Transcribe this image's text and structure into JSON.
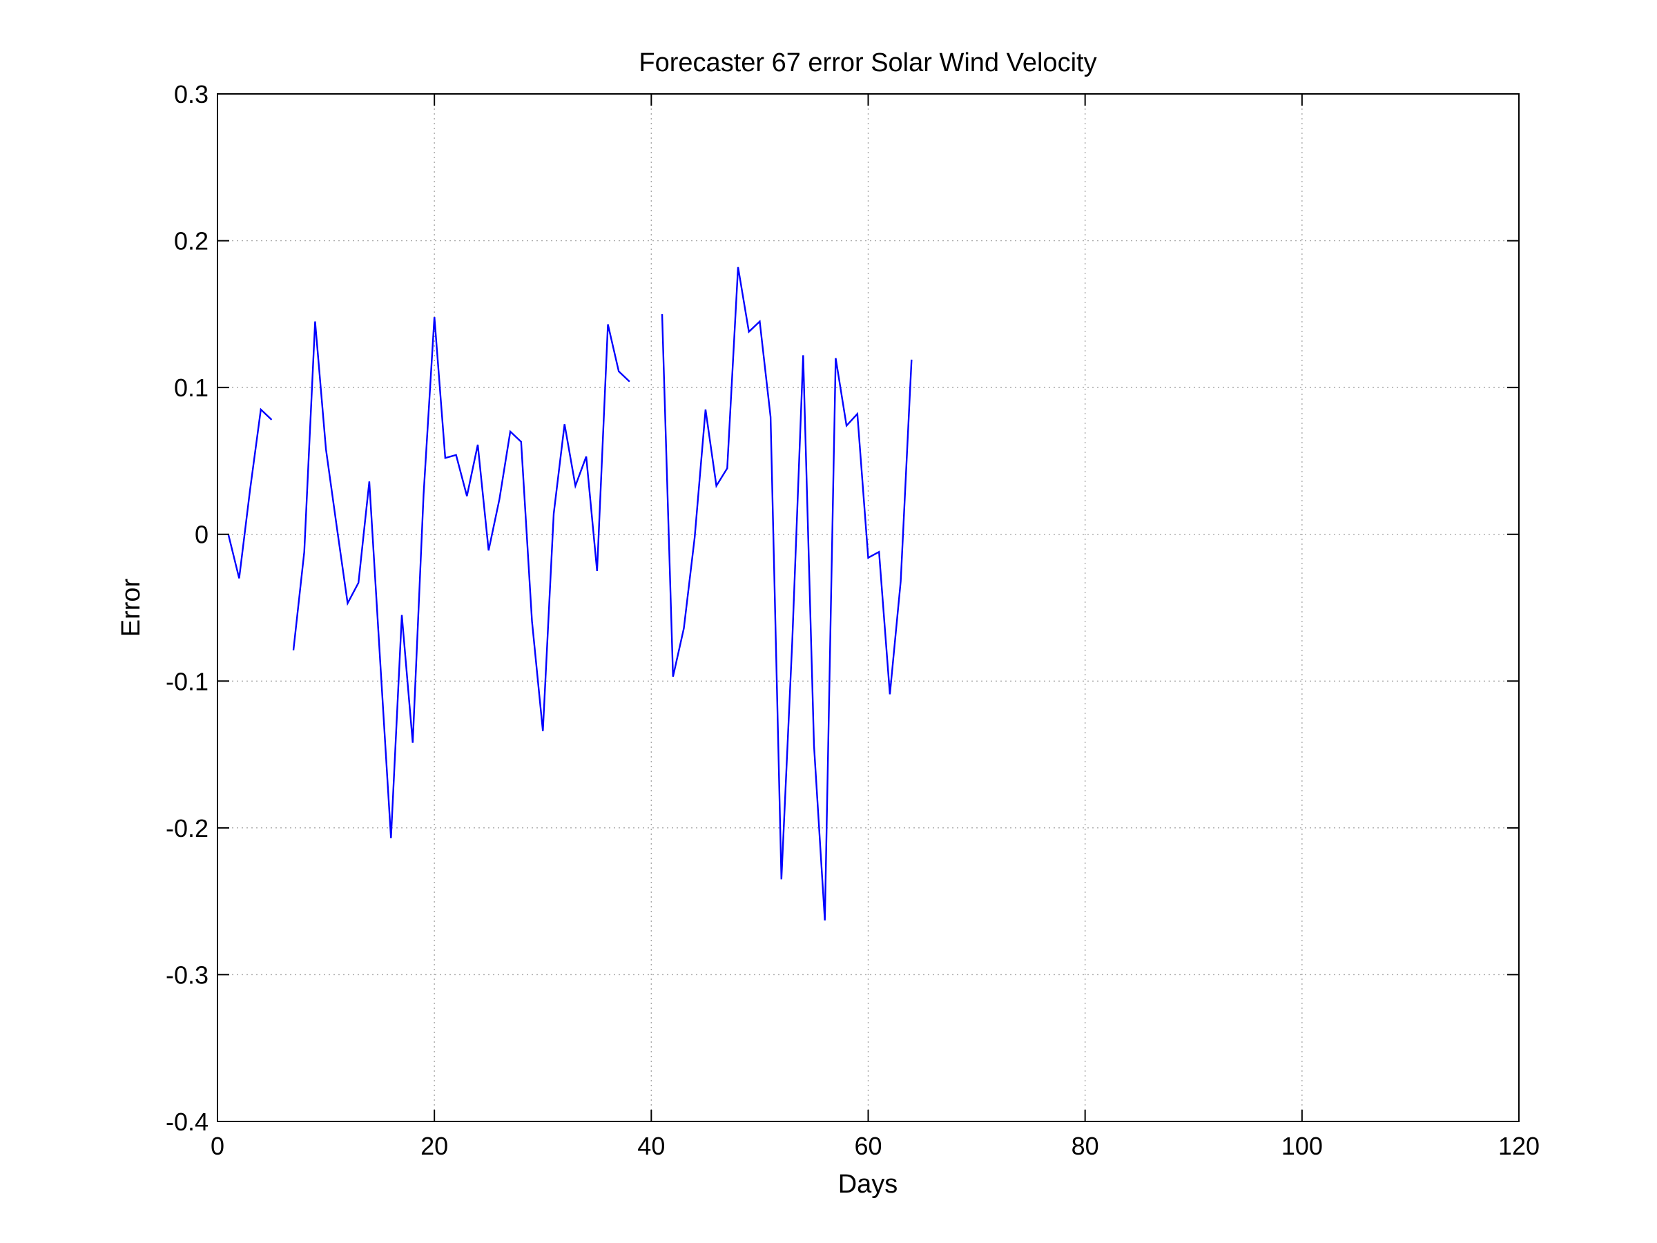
{
  "chart_data": {
    "type": "line",
    "title": "Forecaster 67 error  Solar Wind Velocity",
    "xlabel": "Days",
    "ylabel": "Error",
    "xlim": [
      0,
      120
    ],
    "ylim": [
      -0.4,
      0.3
    ],
    "xticks": [
      0,
      20,
      40,
      60,
      80,
      100,
      120
    ],
    "xtick_labels": [
      "0",
      "20",
      "40",
      "60",
      "80",
      "100",
      "120"
    ],
    "yticks": [
      -0.4,
      -0.3,
      -0.2,
      -0.1,
      0,
      0.1,
      0.2,
      0.3
    ],
    "ytick_labels": [
      "-0.4",
      "-0.3",
      "-0.2",
      "-0.1",
      "0",
      "0.1",
      "0.2",
      "0.3"
    ],
    "grid": true,
    "legend": "none",
    "series_color": "#0000ff",
    "series": [
      {
        "segments": [
          [
            [
              1,
              0.0
            ],
            [
              2,
              -0.03
            ],
            [
              3,
              0.03
            ],
            [
              4,
              0.085
            ],
            [
              5,
              0.078
            ]
          ],
          [
            [
              7,
              -0.079
            ],
            [
              8,
              -0.012
            ],
            [
              9,
              0.145
            ],
            [
              10,
              0.058
            ],
            [
              11,
              0.005
            ],
            [
              12,
              -0.047
            ],
            [
              13,
              -0.033
            ],
            [
              14,
              0.036
            ],
            [
              15,
              -0.086
            ],
            [
              16,
              -0.207
            ],
            [
              17,
              -0.055
            ],
            [
              18,
              -0.142
            ],
            [
              19,
              0.027
            ],
            [
              20,
              0.148
            ],
            [
              21,
              0.052
            ],
            [
              22,
              0.054
            ],
            [
              23,
              0.026
            ],
            [
              24,
              0.061
            ],
            [
              25,
              -0.011
            ],
            [
              26,
              0.024
            ],
            [
              27,
              0.07
            ],
            [
              28,
              0.063
            ],
            [
              29,
              -0.059
            ],
            [
              30,
              -0.134
            ],
            [
              31,
              0.014
            ],
            [
              32,
              0.075
            ],
            [
              33,
              0.033
            ],
            [
              34,
              0.053
            ],
            [
              35,
              -0.025
            ],
            [
              36,
              0.143
            ],
            [
              37,
              0.111
            ],
            [
              38,
              0.104
            ]
          ],
          [
            [
              41,
              0.15
            ],
            [
              42,
              -0.097
            ],
            [
              43,
              -0.064
            ],
            [
              44,
              -0.002
            ],
            [
              45,
              0.085
            ],
            [
              46,
              0.033
            ],
            [
              47,
              0.045
            ],
            [
              48,
              0.182
            ],
            [
              49,
              0.138
            ],
            [
              50,
              0.145
            ],
            [
              51,
              0.08
            ],
            [
              52,
              -0.235
            ],
            [
              53,
              -0.073
            ],
            [
              54,
              0.122
            ],
            [
              55,
              -0.144
            ],
            [
              56,
              -0.263
            ],
            [
              57,
              0.12
            ],
            [
              58,
              0.074
            ],
            [
              59,
              0.082
            ],
            [
              60,
              -0.016
            ],
            [
              61,
              -0.012
            ],
            [
              62,
              -0.109
            ],
            [
              63,
              -0.032
            ],
            [
              64,
              0.119
            ]
          ]
        ]
      }
    ]
  }
}
